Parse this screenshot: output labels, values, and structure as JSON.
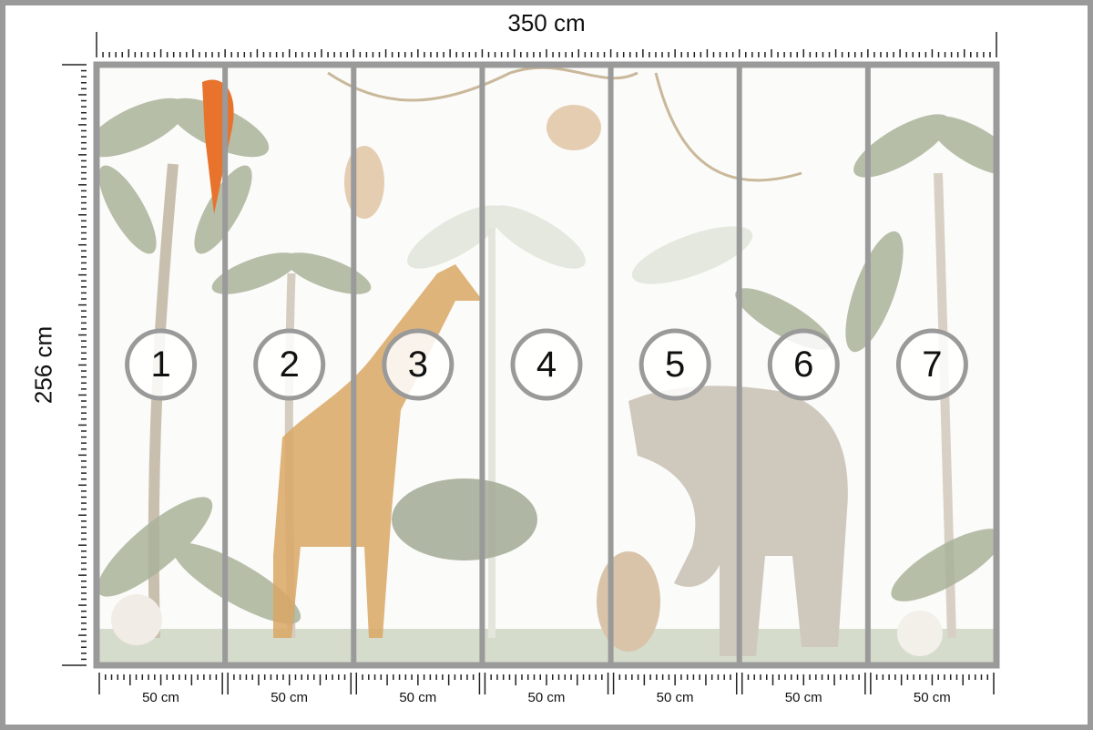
{
  "dimensions": {
    "width_label": "350 cm",
    "height_label": "256 cm"
  },
  "panels": [
    {
      "number": "1",
      "width_label": "50 cm"
    },
    {
      "number": "2",
      "width_label": "50 cm"
    },
    {
      "number": "3",
      "width_label": "50 cm"
    },
    {
      "number": "4",
      "width_label": "50 cm"
    },
    {
      "number": "5",
      "width_label": "50 cm"
    },
    {
      "number": "6",
      "width_label": "50 cm"
    },
    {
      "number": "7",
      "width_label": "50 cm"
    }
  ],
  "colors": {
    "frame": "#9a9a9a",
    "foliage": "#a9b39a",
    "accent_parrot": "#e8732c",
    "giraffe": "#d9a765",
    "elephant": "#cfc8bd"
  }
}
